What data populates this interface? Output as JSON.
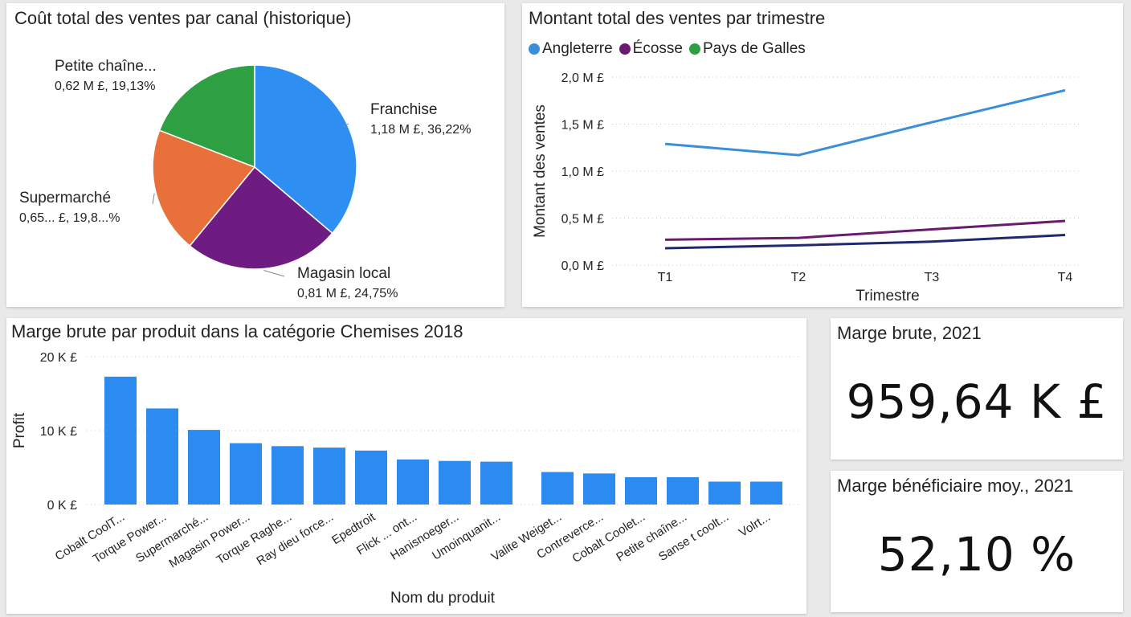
{
  "charts": {
    "pie": {
      "title": "Coût total des ventes par canal (historique)",
      "slices": [
        {
          "label": "Franchise",
          "detail": "1,18 M £, 36,22%",
          "value": 36.22,
          "color": "#2e8ef2"
        },
        {
          "label": "Magasin local",
          "detail": "0,81 M £, 24,75%",
          "value": 24.75,
          "color": "#6e1c82"
        },
        {
          "label": "Supermarché",
          "detail": "0,65... £, 19,8...%",
          "value": 19.9,
          "color": "#e8703a"
        },
        {
          "label": "Petite chaîne...",
          "detail": "0,62 M £, 19,13%",
          "value": 19.13,
          "color": "#2ea043"
        }
      ]
    },
    "line": {
      "title": "Montant total des ventes par trimestre",
      "xlabel": "Trimestre",
      "ylabel": "Montant des ventes",
      "legend": [
        {
          "name": "Angleterre",
          "color": "#3b8fd9"
        },
        {
          "name": "Écosse",
          "color": "#6a1b6e"
        },
        {
          "name": "Pays de Galles",
          "color": "#2ea043"
        }
      ]
    },
    "bar": {
      "title": "Marge brute par produit dans la catégorie Chemises 2018",
      "xlabel": "Nom du produit",
      "ylabel": "Profit"
    }
  },
  "chart_data": [
    {
      "type": "pie",
      "title": "Coût total des ventes par canal (historique)",
      "categories": [
        "Franchise",
        "Magasin local",
        "Supermarché",
        "Petite chaîne..."
      ],
      "values": [
        36.22,
        24.75,
        19.9,
        19.13
      ],
      "amounts_m_gbp": [
        1.18,
        0.81,
        0.65,
        0.62
      ]
    },
    {
      "type": "line",
      "title": "Montant total des ventes par trimestre",
      "xlabel": "Trimestre",
      "ylabel": "Montant des ventes",
      "categories": [
        "T1",
        "T2",
        "T3",
        "T4"
      ],
      "ylim": [
        0,
        2.0
      ],
      "yticks": [
        "0,0 M £",
        "0,5 M £",
        "1,0 M £",
        "1,5 M £",
        "2,0 M £"
      ],
      "ytick_values": [
        0,
        0.5,
        1.0,
        1.5,
        2.0
      ],
      "grid": true,
      "legend_position": "top-left",
      "series": [
        {
          "name": "Angleterre",
          "color": "#3b8fd9",
          "values": [
            1.29,
            1.17,
            1.52,
            1.86
          ]
        },
        {
          "name": "Écosse",
          "color": "#6a1b6e",
          "values": [
            0.27,
            0.29,
            0.38,
            0.47
          ]
        },
        {
          "color": "#1f2a6e",
          "values": [
            0.18,
            0.21,
            0.25,
            0.32
          ]
        }
      ]
    },
    {
      "type": "bar",
      "title": "Marge brute par produit dans la catégorie Chemises 2018",
      "xlabel": "Nom du produit",
      "ylabel": "Profit",
      "ylim": [
        0,
        20
      ],
      "yticks": [
        "0 K £",
        "10 K £",
        "20 K £"
      ],
      "ytick_values": [
        0,
        10,
        20
      ],
      "grid": true,
      "color": "#2b8bf0",
      "categories": [
        "Cobalt CoolT...",
        "Torque Power...",
        "Supermarché...",
        "Magasin Power...",
        "Torque Raghe...",
        "Ray dieu force...",
        "Epedtroit",
        "Flick ... ont...",
        "Hanisnoeger...",
        "Umoinquanit...",
        "Valite Weiget...",
        "Contreverce...",
        "Cobalt Coolet...",
        "Petite chaîne...",
        "Sanse t coolt...",
        "Volrt..."
      ],
      "values": [
        17.3,
        13.0,
        10.1,
        8.3,
        7.9,
        7.7,
        7.3,
        6.1,
        5.9,
        5.8,
        4.4,
        4.2,
        3.7,
        3.7,
        3.1,
        3.1
      ]
    }
  ],
  "cards": {
    "gross_margin": {
      "title": "Marge brute, 2021",
      "value": "959,64 K £"
    },
    "avg_margin": {
      "title": "Marge bénéficiaire moy., 2021",
      "value": "52,10 %"
    }
  }
}
